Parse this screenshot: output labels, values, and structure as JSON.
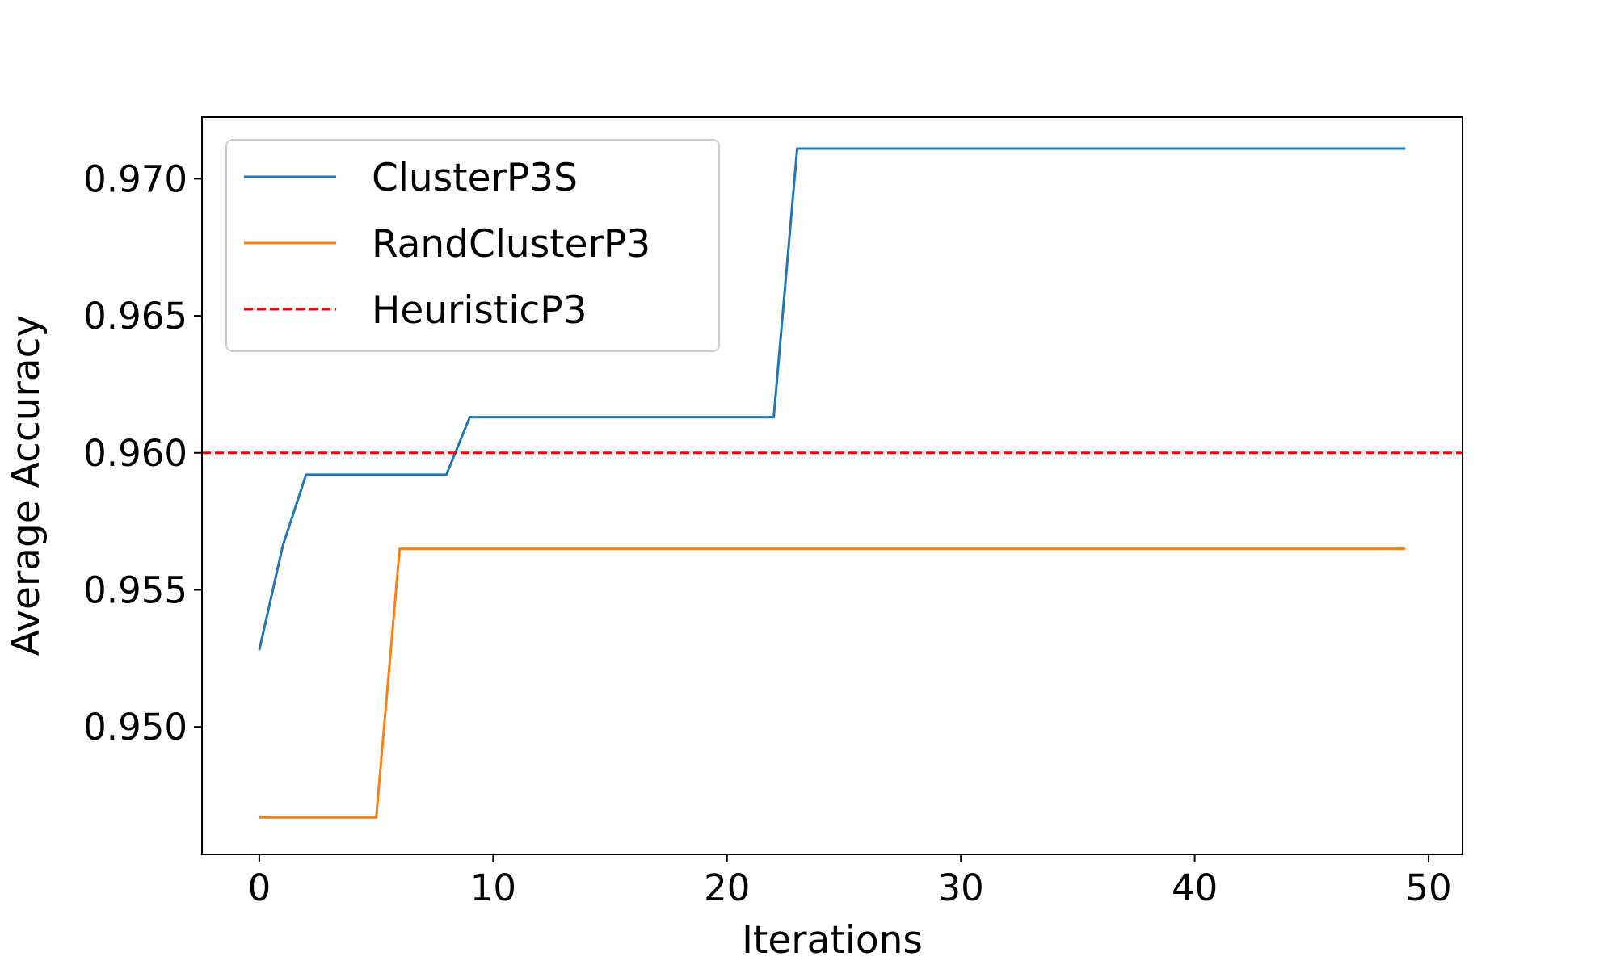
{
  "chart_data": {
    "type": "line",
    "title": "",
    "xlabel": "Iterations",
    "ylabel": "Average Accuracy",
    "xlim": [
      -2.45,
      51.45
    ],
    "ylim": [
      0.94535,
      0.97225
    ],
    "xticks": [
      0,
      10,
      20,
      30,
      40,
      50
    ],
    "xtick_labels": [
      "0",
      "10",
      "20",
      "30",
      "40",
      "50"
    ],
    "yticks": [
      0.95,
      0.955,
      0.96,
      0.965,
      0.97
    ],
    "ytick_labels": [
      "0.950",
      "0.955",
      "0.960",
      "0.965",
      "0.970"
    ],
    "grid": false,
    "legend_position": "upper-left",
    "series": [
      {
        "name": "ClusterP3S",
        "color": "#1f77b4",
        "style": "solid",
        "points": [
          [
            0,
            0.9528
          ],
          [
            1,
            0.9566
          ],
          [
            2,
            0.9592
          ],
          [
            8,
            0.9592
          ],
          [
            9,
            0.9613
          ],
          [
            22,
            0.9613
          ],
          [
            23,
            0.9711
          ],
          [
            49,
            0.9711
          ]
        ]
      },
      {
        "name": "RandClusterP3",
        "color": "#ff7f0e",
        "style": "solid",
        "points": [
          [
            0,
            0.9467
          ],
          [
            5,
            0.9467
          ],
          [
            6,
            0.9565
          ],
          [
            49,
            0.9565
          ]
        ]
      },
      {
        "name": "HeuristicP3",
        "color": "#ff0000",
        "style": "dashed",
        "hline": 0.96
      }
    ]
  }
}
